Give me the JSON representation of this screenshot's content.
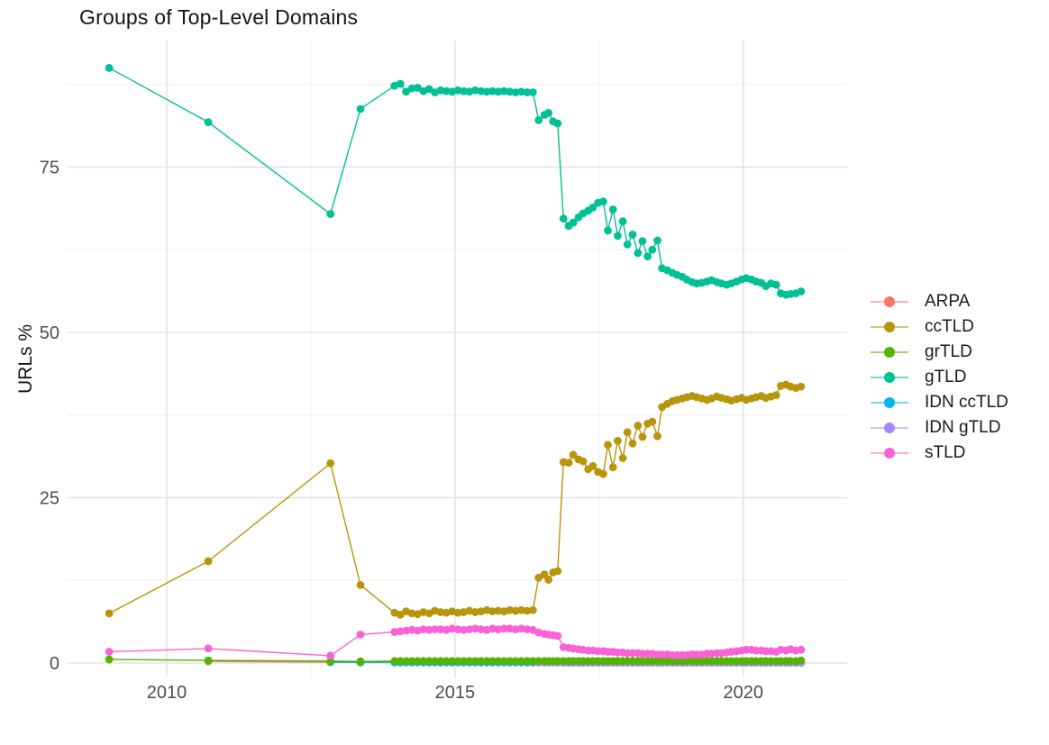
{
  "chart_data": {
    "type": "line",
    "title": "Groups of Top-Level Domains",
    "ylabel": "URLs %",
    "xlabel": "",
    "grid": true,
    "legend_position": "right",
    "style": {
      "background": "#ffffff",
      "grid_major": "#e3e3e3",
      "grid_minor": "#f1f1f1",
      "tick_label_color": "#4d4d4d",
      "title_color": "#141414"
    },
    "x_axis": {
      "range": [
        2008.28,
        2021.8
      ],
      "ticks": [
        {
          "label": "2010",
          "value": 2010
        },
        {
          "label": "2015",
          "value": 2015
        },
        {
          "label": "2020",
          "value": 2020
        }
      ],
      "minor": [
        2012.5,
        2017.5
      ]
    },
    "y_axis": {
      "range": [
        -2.18,
        94.14
      ],
      "ticks": [
        {
          "label": "0",
          "value": 0
        },
        {
          "label": "25",
          "value": 25
        },
        {
          "label": "50",
          "value": 50
        },
        {
          "label": "75",
          "value": 75
        }
      ],
      "minor": [
        12.5,
        37.5,
        62.5,
        87.5
      ]
    },
    "x": [
      2009,
      2010.72,
      2012.84,
      2013.36,
      2013.95,
      2014.05,
      2014.15,
      2014.25,
      2014.35,
      2014.45,
      2014.55,
      2014.65,
      2014.75,
      2014.85,
      2014.95,
      2015.05,
      2015.15,
      2015.25,
      2015.35,
      2015.45,
      2015.55,
      2015.65,
      2015.75,
      2015.85,
      2015.95,
      2016.05,
      2016.15,
      2016.25,
      2016.35,
      2016.45,
      2016.55,
      2016.62,
      2016.7,
      2016.78,
      2016.88,
      2016.97,
      2017.05,
      2017.14,
      2017.22,
      2017.31,
      2017.39,
      2017.48,
      2017.57,
      2017.65,
      2017.74,
      2017.82,
      2017.91,
      2017.99,
      2018.08,
      2018.17,
      2018.25,
      2018.34,
      2018.42,
      2018.51,
      2018.59,
      2018.68,
      2018.77,
      2018.85,
      2018.94,
      2019.02,
      2019.11,
      2019.19,
      2019.28,
      2019.37,
      2019.45,
      2019.54,
      2019.62,
      2019.71,
      2019.79,
      2019.88,
      2019.97,
      2020.05,
      2020.14,
      2020.22,
      2020.31,
      2020.39,
      2020.48,
      2020.57,
      2020.65,
      2020.74,
      2020.82,
      2020.91,
      2021
    ],
    "draw_order": [
      0,
      4,
      5,
      2,
      1,
      3,
      6
    ],
    "series": [
      {
        "name": "ARPA",
        "color": "#F8766D",
        "values": [
          null,
          0.25,
          0.12,
          0.08,
          0.1,
          0.1,
          0.1,
          0.1,
          0.1,
          0.1,
          0.1,
          0.1,
          0.1,
          0.1,
          0.1,
          0.1,
          0.1,
          0.1,
          0.1,
          0.1,
          0.1,
          0.1,
          0.1,
          0.1,
          0.1,
          0.1,
          0.1,
          0.1,
          0.1,
          0.08,
          0.08,
          0.08,
          0.08,
          0.08,
          0.05,
          0.05,
          0.05,
          0.05,
          0.05,
          0.05,
          0.05,
          0.05,
          0.05,
          0.05,
          0.05,
          0.05,
          0.05,
          0.05,
          0.05,
          0.05,
          0.05,
          0.05,
          0.05,
          0.05,
          0.05,
          0.05,
          0.05,
          0.05,
          0.05,
          0.05,
          0.05,
          0.05,
          0.05,
          0.05,
          0.05,
          0.05,
          0.05,
          0.05,
          0.05,
          0.05,
          0.05,
          0.05,
          0.05,
          0.05,
          0.05,
          0.05,
          0.05,
          0.05,
          0.05,
          0.05,
          0.05,
          0.05,
          0.05
        ]
      },
      {
        "name": "ccTLD",
        "color": "#B8950B",
        "values": [
          7.5,
          15.4,
          30.2,
          11.8,
          7.6,
          7.3,
          7.8,
          7.5,
          7.4,
          7.7,
          7.5,
          7.9,
          7.7,
          7.6,
          7.8,
          7.6,
          7.7,
          7.9,
          7.7,
          7.8,
          8,
          7.8,
          7.9,
          7.8,
          8,
          7.9,
          8,
          7.9,
          8,
          12.9,
          13.4,
          12.6,
          13.7,
          13.9,
          30.4,
          30.3,
          31.5,
          30.8,
          30.5,
          29.3,
          29.8,
          28.9,
          28.6,
          33,
          29.6,
          33.6,
          31,
          34.9,
          33.2,
          35.9,
          34.2,
          36.2,
          36.5,
          34.3,
          38.7,
          39.2,
          39.6,
          39.8,
          40,
          40.2,
          40.4,
          40.2,
          40,
          39.8,
          40,
          40.3,
          40.1,
          39.9,
          39.7,
          39.9,
          40.1,
          39.8,
          40,
          40.2,
          40.4,
          40.1,
          40.3,
          40.5,
          41.9,
          42.1,
          41.8,
          41.6,
          41.8
        ]
      },
      {
        "name": "grTLD",
        "color": "#53B400",
        "values": [
          0.55,
          0.4,
          0.3,
          0.25,
          0.3,
          0.3,
          0.3,
          0.3,
          0.3,
          0.3,
          0.3,
          0.3,
          0.3,
          0.3,
          0.3,
          0.3,
          0.3,
          0.3,
          0.3,
          0.3,
          0.3,
          0.3,
          0.3,
          0.3,
          0.3,
          0.3,
          0.3,
          0.3,
          0.3,
          0.3,
          0.3,
          0.3,
          0.3,
          0.3,
          0.3,
          0.3,
          0.3,
          0.3,
          0.3,
          0.3,
          0.3,
          0.3,
          0.3,
          0.3,
          0.3,
          0.3,
          0.3,
          0.3,
          0.3,
          0.3,
          0.3,
          0.3,
          0.3,
          0.3,
          0.3,
          0.3,
          0.3,
          0.3,
          0.3,
          0.3,
          0.3,
          0.3,
          0.3,
          0.3,
          0.3,
          0.3,
          0.3,
          0.3,
          0.3,
          0.3,
          0.3,
          0.3,
          0.3,
          0.3,
          0.3,
          0.3,
          0.3,
          0.3,
          0.3,
          0.3,
          0.3,
          0.3,
          0.4
        ]
      },
      {
        "name": "gTLD",
        "color": "#00C094",
        "values": [
          90,
          81.8,
          67.9,
          83.8,
          87.3,
          87.6,
          86.4,
          86.9,
          87,
          86.5,
          86.8,
          86.3,
          86.6,
          86.5,
          86.4,
          86.6,
          86.5,
          86.4,
          86.6,
          86.5,
          86.4,
          86.5,
          86.4,
          86.5,
          86.4,
          86.3,
          86.4,
          86.3,
          86.3,
          82.1,
          82.9,
          83.2,
          81.9,
          81.6,
          67.2,
          66.1,
          66.6,
          67.4,
          68,
          68.4,
          68.9,
          69.6,
          69.8,
          65.4,
          68.6,
          64.6,
          66.8,
          63.3,
          64.8,
          62,
          63.8,
          61.5,
          62.5,
          63.9,
          59.7,
          59.4,
          59,
          58.7,
          58.4,
          58,
          57.6,
          57.4,
          57.5,
          57.7,
          57.9,
          57.6,
          57.4,
          57.2,
          57.4,
          57.7,
          58,
          58.2,
          58,
          57.7,
          57.5,
          57,
          57.4,
          57.2,
          55.9,
          55.7,
          55.8,
          55.9,
          56.2
        ]
      },
      {
        "name": "IDN ccTLD",
        "color": "#00B6EB",
        "values": [
          null,
          null,
          0.15,
          0.1,
          0.1,
          0.1,
          0.1,
          0.1,
          0.1,
          0.1,
          0.1,
          0.1,
          0.1,
          0.1,
          0.1,
          0.1,
          0.1,
          0.1,
          0.1,
          0.1,
          0.1,
          0.1,
          0.1,
          0.1,
          0.1,
          0.1,
          0.1,
          0.1,
          0.1,
          0.1,
          0.1,
          0.1,
          0.1,
          0.1,
          0.1,
          0.1,
          0.1,
          0.1,
          0.1,
          0.1,
          0.1,
          0.1,
          0.1,
          0.1,
          0.1,
          0.1,
          0.1,
          0.1,
          0.1,
          0.1,
          0.1,
          0.1,
          0.1,
          0.1,
          0.1,
          0.1,
          0.1,
          0.1,
          0.1,
          0.1,
          0.1,
          0.1,
          0.1,
          0.1,
          0.1,
          0.1,
          0.1,
          0.1,
          0.1,
          0.1,
          0.1,
          0.1,
          0.1,
          0.1,
          0.1,
          0.1,
          0.1,
          0.1,
          0.1,
          0.1,
          0.1,
          0.1,
          0.1
        ]
      },
      {
        "name": "IDN gTLD",
        "color": "#A58AFF",
        "values": [
          null,
          null,
          null,
          null,
          null,
          null,
          null,
          null,
          null,
          null,
          null,
          null,
          null,
          null,
          null,
          null,
          null,
          null,
          null,
          null,
          null,
          null,
          null,
          null,
          null,
          null,
          null,
          null,
          null,
          0.1,
          0.1,
          0.1,
          0.1,
          0.1,
          0.05,
          0.05,
          0.05,
          0.05,
          0.05,
          0.05,
          0.05,
          0.05,
          0.05,
          0.05,
          0.05,
          0.05,
          0.05,
          0.05,
          0.05,
          0.05,
          0.05,
          0.05,
          0.05,
          0.05,
          0.05,
          0.05,
          0.05,
          0.05,
          0.05,
          0.05,
          0.05,
          0.05,
          0.05,
          0.05,
          0.05,
          0.05,
          0.05,
          0.05,
          0.05,
          0.05,
          0.05,
          0.05,
          0.05,
          0.05,
          0.05,
          0.05,
          0.05,
          0.05,
          0.05,
          0.05,
          0.05,
          0.05,
          0.05
        ]
      },
      {
        "name": "sTLD",
        "color": "#FB61D7",
        "values": [
          1.7,
          2.2,
          1.1,
          4.3,
          4.7,
          4.8,
          4.9,
          5,
          4.9,
          5.1,
          5,
          5.1,
          5.1,
          5,
          5.2,
          5.1,
          5,
          5.1,
          5.2,
          5.1,
          5,
          5.2,
          5.1,
          5.2,
          5.2,
          5.1,
          5.2,
          5.1,
          5,
          4.6,
          4.4,
          4.3,
          4.2,
          4.1,
          2.4,
          2.3,
          2.2,
          2.1,
          2,
          1.9,
          1.9,
          1.8,
          1.8,
          1.7,
          1.7,
          1.6,
          1.6,
          1.5,
          1.5,
          1.5,
          1.4,
          1.4,
          1.4,
          1.3,
          1.3,
          1.3,
          1.2,
          1.2,
          1.2,
          1.2,
          1.3,
          1.3,
          1.3,
          1.4,
          1.4,
          1.5,
          1.5,
          1.6,
          1.7,
          1.8,
          1.9,
          2,
          2,
          1.9,
          1.9,
          1.8,
          1.8,
          1.7,
          2,
          1.9,
          2.1,
          1.9,
          2
        ]
      }
    ]
  }
}
